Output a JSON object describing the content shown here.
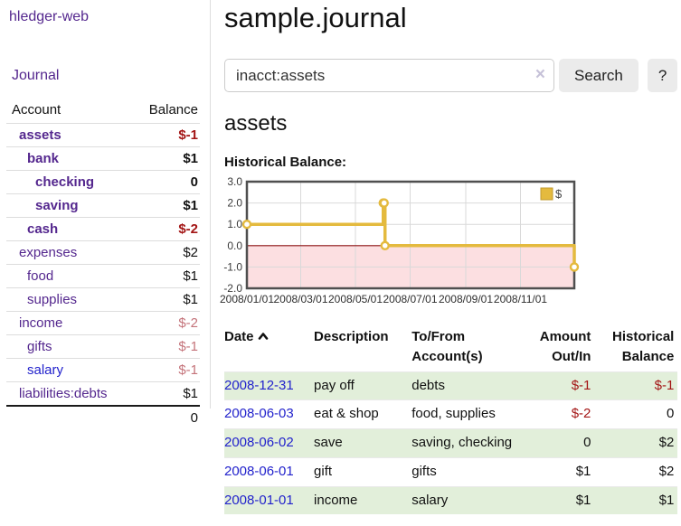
{
  "app_title": "hledger-web",
  "sidebar": {
    "journal_link": "Journal",
    "table": {
      "account_header": "Account",
      "balance_header": "Balance",
      "rows": [
        {
          "name": "assets",
          "balance": "$-1"
        },
        {
          "name": "bank",
          "balance": "$1"
        },
        {
          "name": "checking",
          "balance": "0"
        },
        {
          "name": "saving",
          "balance": "$1"
        },
        {
          "name": "cash",
          "balance": "$-2"
        },
        {
          "name": "expenses",
          "balance": "$2"
        },
        {
          "name": "food",
          "balance": "$1"
        },
        {
          "name": "supplies",
          "balance": "$1"
        },
        {
          "name": "income",
          "balance": "$-2"
        },
        {
          "name": "gifts",
          "balance": "$-1"
        },
        {
          "name": "salary",
          "balance": "$-1"
        },
        {
          "name": "liabilities:debts",
          "balance": "$1"
        }
      ],
      "total": "0"
    }
  },
  "main": {
    "title": "sample.journal",
    "search": {
      "value": "inacct:assets",
      "clear_icon": "×",
      "search_button": "Search",
      "help_button": "?"
    },
    "account_heading": "assets",
    "chart_label": "Historical Balance:"
  },
  "chart_data": {
    "type": "line",
    "step": true,
    "title": "Historical Balance",
    "series": [
      {
        "name": "$",
        "color": "#e4ba3e",
        "points": [
          [
            "2008-01-01",
            1
          ],
          [
            "2008-06-01",
            2
          ],
          [
            "2008-06-02",
            2
          ],
          [
            "2008-06-03",
            0
          ],
          [
            "2008-12-31",
            -1
          ]
        ]
      }
    ],
    "x_range": [
      "2008-01-01",
      "2008-12-31"
    ],
    "x_ticks": [
      "2008/01/01",
      "2008/03/01",
      "2008/05/01",
      "2008/07/01",
      "2008/09/01",
      "2008/11/01"
    ],
    "y_ticks": [
      "3.0",
      "2.0",
      "1.0",
      "0.0",
      "-1.0",
      "-2.0"
    ],
    "ylim": [
      -2,
      3
    ],
    "grid": true,
    "legend_position": "top-right",
    "colors": {
      "negative_region": "#fcdfe1",
      "zero_line": "#8e1313",
      "border": "#4f4f4f",
      "gridline": "#d9d9d9",
      "marker_fill": "#ffffff",
      "tick_label": "#3a3a3a"
    }
  },
  "register": {
    "headers": {
      "date": "Date",
      "description": "Description",
      "accounts": "To/From Account(s)",
      "amount": "Amount Out/In",
      "balance": "Historical Balance"
    },
    "rows": [
      {
        "date": "2008-12-31",
        "description": "pay off",
        "accounts": "debts",
        "amount": "$-1",
        "balance": "$-1"
      },
      {
        "date": "2008-06-03",
        "description": "eat & shop",
        "accounts": "food, supplies",
        "amount": "$-2",
        "balance": "0"
      },
      {
        "date": "2008-06-02",
        "description": "save",
        "accounts": "saving, checking",
        "amount": "0",
        "balance": "$2"
      },
      {
        "date": "2008-06-01",
        "description": "gift",
        "accounts": "gifts",
        "amount": "$1",
        "balance": "$2"
      },
      {
        "date": "2008-01-01",
        "description": "income",
        "accounts": "salary",
        "amount": "$1",
        "balance": "$1"
      }
    ]
  }
}
